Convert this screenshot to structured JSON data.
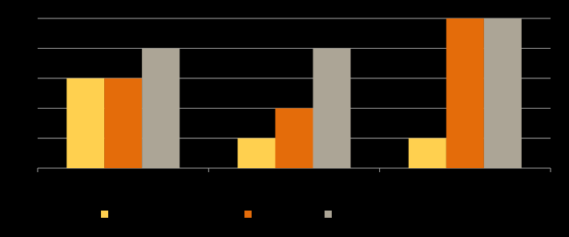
{
  "chart_data": {
    "type": "bar",
    "series": [
      {
        "color": "#ffd04f",
        "values": [
          3,
          1,
          1
        ]
      },
      {
        "color": "#e46c0a",
        "values": [
          3,
          2,
          5
        ]
      },
      {
        "color": "#aca596",
        "values": [
          4,
          4,
          5
        ]
      }
    ],
    "ylim": [
      0,
      5
    ],
    "yticks": [
      0,
      1,
      2,
      3,
      4,
      5
    ],
    "grid": true
  }
}
